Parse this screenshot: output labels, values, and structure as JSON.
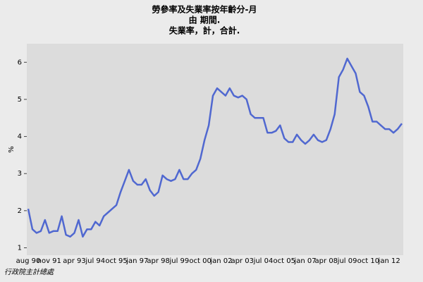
{
  "chart_data": {
    "type": "line",
    "title": [
      "勞參率及失業率按年齡分-月",
      "由 期間.",
      "失業率，計，合計."
    ],
    "ylabel": "%",
    "source": "行政院主計總處",
    "categories": [
      "aug 90",
      null,
      null,
      null,
      null,
      "nov 91",
      null,
      null,
      null,
      null,
      null,
      "apr 93",
      null,
      null,
      null,
      null,
      "jul 94",
      null,
      null,
      null,
      null,
      "oct 95",
      null,
      null,
      null,
      null,
      "jan 97",
      null,
      null,
      null,
      null,
      "apr 98",
      null,
      null,
      null,
      null,
      "jul 99",
      null,
      null,
      null,
      null,
      "oct 00",
      null,
      null,
      null,
      null,
      "jan 02",
      null,
      null,
      null,
      null,
      "apr 03",
      null,
      null,
      null,
      null,
      "jul 04",
      null,
      null,
      null,
      null,
      "oct 05",
      null,
      null,
      null,
      null,
      "jan 07",
      null,
      null,
      null,
      null,
      "apr 08",
      null,
      null,
      null,
      null,
      "jul 09",
      null,
      null,
      null,
      null,
      "oct 10",
      null,
      null,
      null,
      null,
      "jan 12",
      null,
      null,
      null
    ],
    "series": [
      {
        "name": "失業率",
        "color": "#5068d0",
        "values": [
          2.05,
          1.5,
          1.4,
          1.45,
          1.75,
          1.4,
          1.45,
          1.45,
          1.85,
          1.35,
          1.3,
          1.4,
          1.75,
          1.3,
          1.5,
          1.5,
          1.7,
          1.6,
          1.85,
          1.95,
          2.05,
          2.15,
          2.5,
          2.8,
          3.1,
          2.8,
          2.7,
          2.7,
          2.85,
          2.55,
          2.4,
          2.5,
          2.95,
          2.85,
          2.8,
          2.85,
          3.1,
          2.85,
          2.85,
          3.0,
          3.1,
          3.4,
          3.9,
          4.3,
          5.1,
          5.3,
          5.2,
          5.1,
          5.3,
          5.1,
          5.05,
          5.1,
          5.0,
          4.6,
          4.5,
          4.5,
          4.5,
          4.1,
          4.1,
          4.15,
          4.3,
          3.95,
          3.85,
          3.85,
          4.05,
          3.9,
          3.8,
          3.9,
          4.05,
          3.9,
          3.85,
          3.9,
          4.2,
          4.6,
          5.6,
          5.8,
          6.1,
          5.9,
          5.7,
          5.2,
          5.1,
          4.8,
          4.4,
          4.4,
          4.3,
          4.2,
          4.2,
          4.1,
          4.2,
          4.35
        ]
      }
    ],
    "ylim": [
      0.8,
      6.5
    ],
    "yticks": [
      1,
      2,
      3,
      4,
      5,
      6
    ]
  }
}
